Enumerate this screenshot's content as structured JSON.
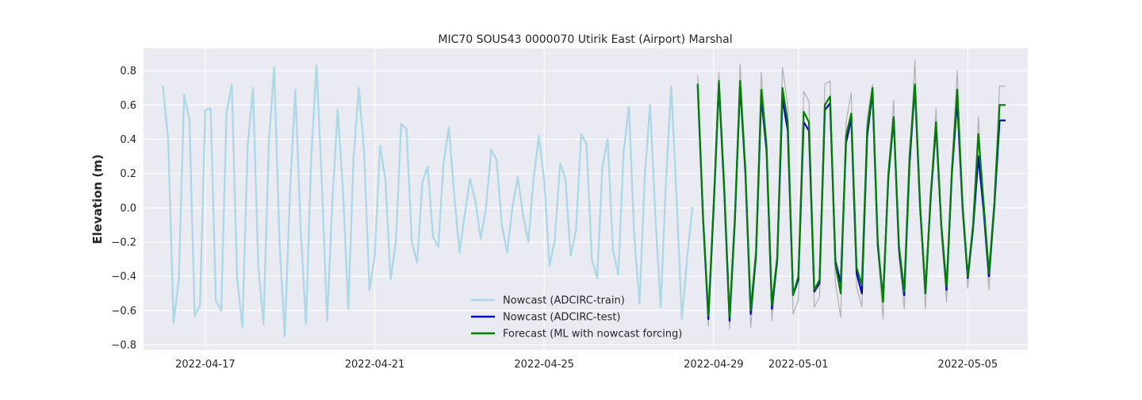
{
  "chart_data": {
    "type": "line",
    "title": "MIC70 SOUS43 0000070 Utirik East (Airport) Marshal",
    "xlabel": "",
    "ylabel": "Elevation (m)",
    "xlim": [
      "2022-04-15T13:00",
      "2022-05-06T10:00"
    ],
    "ylim": [
      -0.83,
      0.93
    ],
    "x_ticks": [
      "2022-04-17",
      "2022-04-21",
      "2022-04-25",
      "2022-04-29",
      "2022-05-01",
      "2022-05-05"
    ],
    "y_ticks": [
      "−0.8",
      "−0.6",
      "−0.4",
      "−0.2",
      "0.0",
      "0.2",
      "0.4",
      "0.6",
      "0.8"
    ],
    "y_tick_values": [
      -0.8,
      -0.6,
      -0.4,
      -0.2,
      0.0,
      0.2,
      0.4,
      0.6,
      0.8
    ],
    "grid": true,
    "legend_position": "lower-center",
    "series": [
      {
        "name": "Nowcast (ADCIRC-train)",
        "color": "#add8e6",
        "x": [
          "2022-04-16T00:00",
          "2022-04-16T03:00",
          "2022-04-16T06:00",
          "2022-04-16T09:00",
          "2022-04-16T12:00",
          "2022-04-16T15:00",
          "2022-04-16T18:00",
          "2022-04-16T21:00",
          "2022-04-17T00:00",
          "2022-04-17T03:00",
          "2022-04-17T06:00",
          "2022-04-17T09:00",
          "2022-04-17T12:00",
          "2022-04-17T15:00",
          "2022-04-17T18:00",
          "2022-04-17T21:00",
          "2022-04-18T00:00",
          "2022-04-18T03:00",
          "2022-04-18T06:00",
          "2022-04-18T09:00",
          "2022-04-18T12:00",
          "2022-04-18T15:00",
          "2022-04-18T18:00",
          "2022-04-18T21:00",
          "2022-04-19T00:00",
          "2022-04-19T03:00",
          "2022-04-19T06:00",
          "2022-04-19T09:00",
          "2022-04-19T12:00",
          "2022-04-19T15:00",
          "2022-04-19T18:00",
          "2022-04-19T21:00",
          "2022-04-20T00:00",
          "2022-04-20T03:00",
          "2022-04-20T06:00",
          "2022-04-20T09:00",
          "2022-04-20T12:00",
          "2022-04-20T15:00",
          "2022-04-20T18:00",
          "2022-04-20T21:00",
          "2022-04-21T00:00",
          "2022-04-21T03:00",
          "2022-04-21T06:00",
          "2022-04-21T09:00",
          "2022-04-21T12:00",
          "2022-04-21T15:00",
          "2022-04-21T18:00",
          "2022-04-21T21:00",
          "2022-04-22T00:00",
          "2022-04-22T03:00",
          "2022-04-22T06:00",
          "2022-04-22T09:00",
          "2022-04-22T12:00",
          "2022-04-22T15:00",
          "2022-04-22T18:00",
          "2022-04-22T21:00",
          "2022-04-23T00:00",
          "2022-04-23T03:00",
          "2022-04-23T06:00",
          "2022-04-23T09:00",
          "2022-04-23T12:00",
          "2022-04-23T15:00",
          "2022-04-23T18:00",
          "2022-04-23T21:00",
          "2022-04-24T00:00",
          "2022-04-24T03:00",
          "2022-04-24T06:00",
          "2022-04-24T09:00",
          "2022-04-24T12:00",
          "2022-04-24T15:00",
          "2022-04-24T18:00",
          "2022-04-24T21:00",
          "2022-04-25T00:00",
          "2022-04-25T03:00",
          "2022-04-25T06:00",
          "2022-04-25T09:00",
          "2022-04-25T12:00",
          "2022-04-25T15:00",
          "2022-04-25T18:00",
          "2022-04-25T21:00",
          "2022-04-26T00:00",
          "2022-04-26T03:00",
          "2022-04-26T06:00",
          "2022-04-26T09:00",
          "2022-04-26T12:00",
          "2022-04-26T15:00",
          "2022-04-26T18:00",
          "2022-04-26T21:00",
          "2022-04-27T00:00",
          "2022-04-27T03:00",
          "2022-04-27T06:00",
          "2022-04-27T09:00",
          "2022-04-27T12:00",
          "2022-04-27T15:00",
          "2022-04-27T18:00",
          "2022-04-27T21:00",
          "2022-04-28T00:00",
          "2022-04-28T03:00",
          "2022-04-28T06:00",
          "2022-04-28T09:00",
          "2022-04-28T12:00"
        ],
        "values": [
          0.71,
          0.39,
          -0.67,
          -0.42,
          0.66,
          0.51,
          -0.63,
          -0.57,
          0.57,
          0.58,
          -0.54,
          -0.6,
          0.55,
          0.72,
          -0.41,
          -0.7,
          0.36,
          0.7,
          -0.34,
          -0.68,
          0.38,
          0.82,
          -0.2,
          -0.75,
          0.1,
          0.69,
          -0.12,
          -0.68,
          0.29,
          0.83,
          0.15,
          -0.66,
          0.04,
          0.57,
          0.1,
          -0.59,
          0.29,
          0.7,
          0.32,
          -0.48,
          -0.28,
          0.36,
          0.17,
          -0.42,
          -0.19,
          0.49,
          0.46,
          -0.2,
          -0.32,
          0.15,
          0.24,
          -0.17,
          -0.23,
          0.26,
          0.47,
          0.08,
          -0.26,
          -0.04,
          0.17,
          0.04,
          -0.18,
          0.0,
          0.34,
          0.28,
          -0.1,
          -0.26,
          0.0,
          0.18,
          -0.04,
          -0.2,
          0.17,
          0.42,
          0.16,
          -0.34,
          -0.19,
          0.26,
          0.17,
          -0.28,
          -0.13,
          0.43,
          0.37,
          -0.3,
          -0.41,
          0.24,
          0.4,
          -0.25,
          -0.39,
          0.32,
          0.59,
          -0.16,
          -0.56,
          0.19,
          0.6,
          -0.05,
          -0.58,
          0.16,
          0.71,
          0.06,
          -0.65,
          -0.29,
          0.0
        ]
      },
      {
        "name": "Nowcast (ADCIRC-test)",
        "color": "#0000cc",
        "x": [
          "2022-04-28T15:00",
          "2022-04-28T18:00",
          "2022-04-28T21:00",
          "2022-04-29T00:00",
          "2022-04-29T03:00",
          "2022-04-29T06:00",
          "2022-04-29T09:00",
          "2022-04-29T12:00",
          "2022-04-29T15:00",
          "2022-04-29T18:00",
          "2022-04-29T21:00",
          "2022-04-30T00:00",
          "2022-04-30T03:00",
          "2022-04-30T06:00",
          "2022-04-30T09:00",
          "2022-04-30T12:00",
          "2022-04-30T15:00",
          "2022-04-30T18:00",
          "2022-04-30T21:00",
          "2022-05-01T00:00",
          "2022-05-01T03:00",
          "2022-05-01T06:00",
          "2022-05-01T09:00",
          "2022-05-01T12:00",
          "2022-05-01T15:00",
          "2022-05-01T18:00",
          "2022-05-01T21:00",
          "2022-05-02T00:00",
          "2022-05-02T03:00",
          "2022-05-02T06:00",
          "2022-05-02T09:00",
          "2022-05-02T12:00",
          "2022-05-02T15:00",
          "2022-05-02T18:00",
          "2022-05-02T21:00",
          "2022-05-03T00:00",
          "2022-05-03T03:00",
          "2022-05-03T06:00",
          "2022-05-03T09:00",
          "2022-05-03T12:00",
          "2022-05-03T15:00",
          "2022-05-03T18:00",
          "2022-05-03T21:00",
          "2022-05-04T00:00",
          "2022-05-04T03:00",
          "2022-05-04T06:00",
          "2022-05-04T09:00",
          "2022-05-04T12:00",
          "2022-05-04T15:00",
          "2022-05-04T18:00",
          "2022-05-04T21:00",
          "2022-05-05T00:00",
          "2022-05-05T03:00",
          "2022-05-05T06:00",
          "2022-05-05T09:00",
          "2022-05-05T12:00",
          "2022-05-05T15:00",
          "2022-05-05T18:00",
          "2022-05-05T21:00"
        ],
        "values": [
          0.71,
          -0.06,
          -0.65,
          0.0,
          0.72,
          0.1,
          -0.66,
          -0.08,
          0.72,
          0.2,
          -0.62,
          -0.28,
          0.65,
          0.33,
          -0.59,
          -0.31,
          0.64,
          0.45,
          -0.51,
          -0.42,
          0.5,
          0.45,
          -0.49,
          -0.44,
          0.57,
          0.61,
          -0.31,
          -0.44,
          0.38,
          0.52,
          -0.38,
          -0.5,
          0.42,
          0.68,
          -0.22,
          -0.53,
          0.18,
          0.52,
          -0.24,
          -0.51,
          0.26,
          0.71,
          0.0,
          -0.49,
          0.06,
          0.48,
          -0.1,
          -0.48,
          0.2,
          0.63,
          0.0,
          -0.41,
          -0.12,
          0.3,
          -0.02,
          -0.4,
          0.0,
          0.51,
          0.51
        ]
      },
      {
        "name": "Forecast (ML with nowcast forcing)",
        "color": "#008000",
        "x": [
          "2022-04-28T15:00",
          "2022-04-28T18:00",
          "2022-04-28T21:00",
          "2022-04-29T00:00",
          "2022-04-29T03:00",
          "2022-04-29T06:00",
          "2022-04-29T09:00",
          "2022-04-29T12:00",
          "2022-04-29T15:00",
          "2022-04-29T18:00",
          "2022-04-29T21:00",
          "2022-04-30T00:00",
          "2022-04-30T03:00",
          "2022-04-30T06:00",
          "2022-04-30T09:00",
          "2022-04-30T12:00",
          "2022-04-30T15:00",
          "2022-04-30T18:00",
          "2022-04-30T21:00",
          "2022-05-01T00:00",
          "2022-05-01T03:00",
          "2022-05-01T06:00",
          "2022-05-01T09:00",
          "2022-05-01T12:00",
          "2022-05-01T15:00",
          "2022-05-01T18:00",
          "2022-05-01T21:00",
          "2022-05-02T00:00",
          "2022-05-02T03:00",
          "2022-05-02T06:00",
          "2022-05-02T09:00",
          "2022-05-02T12:00",
          "2022-05-02T15:00",
          "2022-05-02T18:00",
          "2022-05-02T21:00",
          "2022-05-03T00:00",
          "2022-05-03T03:00",
          "2022-05-03T06:00",
          "2022-05-03T09:00",
          "2022-05-03T12:00",
          "2022-05-03T15:00",
          "2022-05-03T18:00",
          "2022-05-03T21:00",
          "2022-05-04T00:00",
          "2022-05-04T03:00",
          "2022-05-04T06:00",
          "2022-05-04T09:00",
          "2022-05-04T12:00",
          "2022-05-04T15:00",
          "2022-05-04T18:00",
          "2022-05-04T21:00",
          "2022-05-05T00:00",
          "2022-05-05T03:00",
          "2022-05-05T06:00",
          "2022-05-05T09:00",
          "2022-05-05T12:00",
          "2022-05-05T15:00",
          "2022-05-05T18:00",
          "2022-05-05T21:00"
        ],
        "values": [
          0.72,
          -0.05,
          -0.63,
          0.02,
          0.74,
          0.12,
          -0.64,
          -0.06,
          0.74,
          0.22,
          -0.6,
          -0.26,
          0.69,
          0.36,
          -0.57,
          -0.29,
          0.7,
          0.5,
          -0.51,
          -0.4,
          0.56,
          0.5,
          -0.48,
          -0.42,
          0.6,
          0.65,
          -0.33,
          -0.5,
          0.42,
          0.55,
          -0.35,
          -0.45,
          0.46,
          0.7,
          -0.2,
          -0.55,
          0.2,
          0.53,
          -0.22,
          -0.49,
          0.3,
          0.72,
          0.02,
          -0.5,
          0.08,
          0.5,
          -0.1,
          -0.46,
          0.22,
          0.69,
          0.02,
          -0.4,
          -0.1,
          0.43,
          0.02,
          -0.38,
          0.02,
          0.6,
          0.6
        ]
      },
      {
        "name": "",
        "color": "#b0b0b0",
        "x": [
          "2022-04-28T15:00",
          "2022-04-28T18:00",
          "2022-04-28T21:00",
          "2022-04-29T00:00",
          "2022-04-29T03:00",
          "2022-04-29T06:00",
          "2022-04-29T09:00",
          "2022-04-29T12:00",
          "2022-04-29T15:00",
          "2022-04-29T18:00",
          "2022-04-29T21:00",
          "2022-04-30T00:00",
          "2022-04-30T03:00",
          "2022-04-30T06:00",
          "2022-04-30T09:00",
          "2022-04-30T12:00",
          "2022-04-30T15:00",
          "2022-04-30T18:00",
          "2022-04-30T21:00",
          "2022-05-01T00:00",
          "2022-05-01T03:00",
          "2022-05-01T06:00",
          "2022-05-01T09:00",
          "2022-05-01T12:00",
          "2022-05-01T15:00",
          "2022-05-01T18:00",
          "2022-05-01T21:00",
          "2022-05-02T00:00",
          "2022-05-02T03:00",
          "2022-05-02T06:00",
          "2022-05-02T09:00",
          "2022-05-02T12:00",
          "2022-05-02T15:00",
          "2022-05-02T18:00",
          "2022-05-02T21:00",
          "2022-05-03T00:00",
          "2022-05-03T03:00",
          "2022-05-03T06:00",
          "2022-05-03T09:00",
          "2022-05-03T12:00",
          "2022-05-03T15:00",
          "2022-05-03T18:00",
          "2022-05-03T21:00",
          "2022-05-04T00:00",
          "2022-05-04T03:00",
          "2022-05-04T06:00",
          "2022-05-04T09:00",
          "2022-05-04T12:00",
          "2022-05-04T15:00",
          "2022-05-04T18:00",
          "2022-05-04T21:00",
          "2022-05-05T00:00",
          "2022-05-05T03:00",
          "2022-05-05T06:00",
          "2022-05-05T09:00",
          "2022-05-05T12:00",
          "2022-05-05T15:00",
          "2022-05-05T18:00",
          "2022-05-05T21:00"
        ],
        "values": [
          0.77,
          -0.05,
          -0.69,
          0.0,
          0.79,
          0.12,
          -0.71,
          -0.08,
          0.84,
          0.25,
          -0.7,
          -0.3,
          0.79,
          0.4,
          -0.66,
          -0.3,
          0.82,
          0.6,
          -0.62,
          -0.54,
          0.68,
          0.62,
          -0.58,
          -0.52,
          0.72,
          0.74,
          -0.44,
          -0.64,
          0.5,
          0.67,
          -0.46,
          -0.58,
          0.52,
          0.72,
          -0.24,
          -0.65,
          0.21,
          0.63,
          -0.28,
          -0.59,
          0.26,
          0.86,
          0.0,
          -0.59,
          0.08,
          0.58,
          -0.16,
          -0.55,
          0.25,
          0.8,
          0.02,
          -0.47,
          -0.1,
          0.53,
          -0.05,
          -0.48,
          0.0,
          0.71,
          0.71
        ]
      }
    ]
  }
}
